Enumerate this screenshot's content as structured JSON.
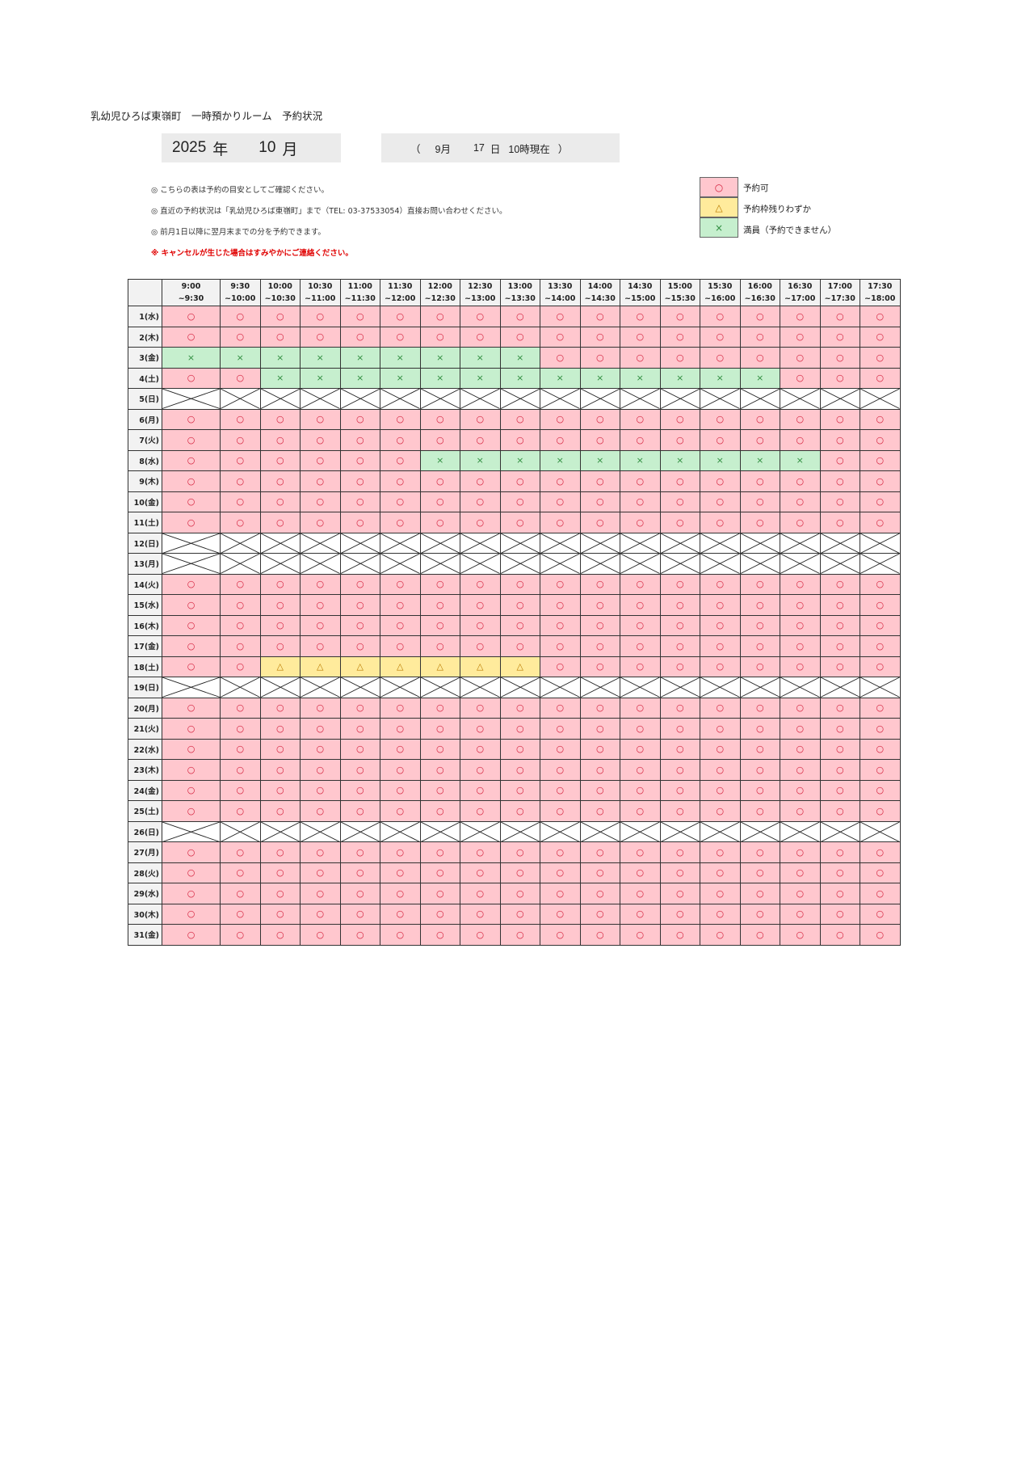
{
  "title": "乳幼児ひろば東嶺町　一時預かりルーム　予約状況",
  "year_month": {
    "year": "2025",
    "year_unit": "年",
    "month": "10",
    "month_unit": "月"
  },
  "as_of": {
    "open": "（",
    "month": "9月",
    "day": "17",
    "day_unit": "日",
    "time": "10時現在",
    "close": "）"
  },
  "notes": [
    "◎ こちらの表は予約の目安としてご確認ください。",
    "◎ 直近の予約状況は「乳幼児ひろば東嶺町」まで（TEL: 03-37533054）直接お問い合わせください。",
    "◎ 前月1日以降に翌月末までの分を予約できます。",
    "※ キャンセルが生じた場合はすみやかにご連絡ください。"
  ],
  "legend": [
    {
      "code": "O",
      "symbol": "○",
      "label": "予約可",
      "color": "#ffc7ce"
    },
    {
      "code": "T",
      "symbol": "△",
      "label": "予約枠残りわずか",
      "color": "#ffeb9c"
    },
    {
      "code": "X",
      "symbol": "×",
      "label": "満員（予約できません）",
      "color": "#c6efce"
    }
  ],
  "time_slots": [
    [
      "9:00",
      "~9:30"
    ],
    [
      "9:30",
      "~10:00"
    ],
    [
      "10:00",
      "~10:30"
    ],
    [
      "10:30",
      "~11:00"
    ],
    [
      "11:00",
      "~11:30"
    ],
    [
      "11:30",
      "~12:00"
    ],
    [
      "12:00",
      "~12:30"
    ],
    [
      "12:30",
      "~13:00"
    ],
    [
      "13:00",
      "~13:30"
    ],
    [
      "13:30",
      "~14:00"
    ],
    [
      "14:00",
      "~14:30"
    ],
    [
      "14:30",
      "~15:00"
    ],
    [
      "15:00",
      "~15:30"
    ],
    [
      "15:30",
      "~16:00"
    ],
    [
      "16:00",
      "~16:30"
    ],
    [
      "16:30",
      "~17:00"
    ],
    [
      "17:00",
      "~17:30"
    ],
    [
      "17:30",
      "~18:00"
    ]
  ],
  "days": [
    {
      "day": "1(水)",
      "slots": "OOOOOOOOOOOOOOOOOO"
    },
    {
      "day": "2(木)",
      "slots": "OOOOOOOOOOOOOOOOOO"
    },
    {
      "day": "3(金)",
      "slots": "XXXXXXXXXOOOOOOOOO"
    },
    {
      "day": "4(土)",
      "slots": "OOXXXXXXXXXXXXXOOO"
    },
    {
      "day": "5(日)",
      "slots": "CCCCCCCCCCCCCCCCCC"
    },
    {
      "day": "6(月)",
      "slots": "OOOOOOOOOOOOOOOOOO"
    },
    {
      "day": "7(火)",
      "slots": "OOOOOOOOOOOOOOOOOO"
    },
    {
      "day": "8(水)",
      "slots": "OOOOOOXXXXXXXXXXOO"
    },
    {
      "day": "9(木)",
      "slots": "OOOOOOOOOOOOOOOOOO"
    },
    {
      "day": "10(金)",
      "slots": "OOOOOOOOOOOOOOOOOO"
    },
    {
      "day": "11(土)",
      "slots": "OOOOOOOOOOOOOOOOOO"
    },
    {
      "day": "12(日)",
      "slots": "CCCCCCCCCCCCCCCCCC"
    },
    {
      "day": "13(月)",
      "slots": "CCCCCCCCCCCCCCCCCC"
    },
    {
      "day": "14(火)",
      "slots": "OOOOOOOOOOOOOOOOOO"
    },
    {
      "day": "15(水)",
      "slots": "OOOOOOOOOOOOOOOOOO"
    },
    {
      "day": "16(木)",
      "slots": "OOOOOOOOOOOOOOOOOO"
    },
    {
      "day": "17(金)",
      "slots": "OOOOOOOOOOOOOOOOOO"
    },
    {
      "day": "18(土)",
      "slots": "OOTTTTTTTOOOOOOOOO"
    },
    {
      "day": "19(日)",
      "slots": "CCCCCCCCCCCCCCCCCC"
    },
    {
      "day": "20(月)",
      "slots": "OOOOOOOOOOOOOOOOOO"
    },
    {
      "day": "21(火)",
      "slots": "OOOOOOOOOOOOOOOOOO"
    },
    {
      "day": "22(水)",
      "slots": "OOOOOOOOOOOOOOOOOO"
    },
    {
      "day": "23(木)",
      "slots": "OOOOOOOOOOOOOOOOOO"
    },
    {
      "day": "24(金)",
      "slots": "OOOOOOOOOOOOOOOOOO"
    },
    {
      "day": "25(土)",
      "slots": "OOOOOOOOOOOOOOOOOO"
    },
    {
      "day": "26(日)",
      "slots": "CCCCCCCCCCCCCCCCCC"
    },
    {
      "day": "27(月)",
      "slots": "OOOOOOOOOOOOOOOOOO"
    },
    {
      "day": "28(火)",
      "slots": "OOOOOOOOOOOOOOOOOO"
    },
    {
      "day": "29(水)",
      "slots": "OOOOOOOOOOOOOOOOOO"
    },
    {
      "day": "30(木)",
      "slots": "OOOOOOOOOOOOOOOOOO"
    },
    {
      "day": "31(金)",
      "slots": "OOOOOOOOOOOOOOOOOO"
    }
  ]
}
